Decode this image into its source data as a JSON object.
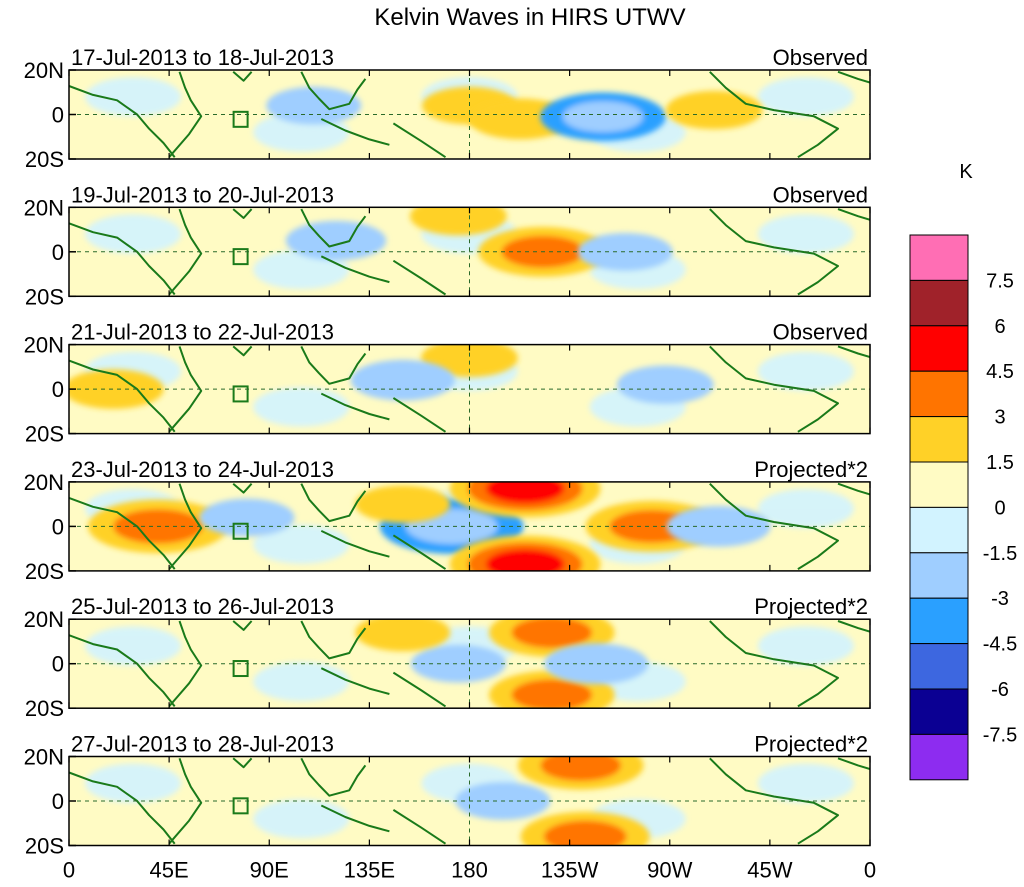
{
  "chart_data": {
    "type": "heatmap",
    "title": "Kelvin Waves in HIRS UTWV",
    "units": "K",
    "x_ticks": [
      "0",
      "45E",
      "90E",
      "135E",
      "180",
      "135W",
      "90W",
      "45W",
      "0"
    ],
    "x_range_deg_east": [
      0,
      360
    ],
    "y_ticks": [
      "20N",
      "0",
      "20S"
    ],
    "y_range_deg": [
      -20,
      20
    ],
    "colorbar": {
      "levels": [
        "7.5",
        "6",
        "4.5",
        "3",
        "1.5",
        "0",
        "-1.5",
        "-3",
        "-4.5",
        "-6",
        "-7.5"
      ],
      "colors": [
        "#ff6eb4",
        "#a0222a",
        "#ff0000",
        "#ff7400",
        "#ffd127",
        "#fffbc4",
        "#d2f3ff",
        "#9fceff",
        "#2aa0ff",
        "#3d67e0",
        "#0b0093",
        "#8d2cf0"
      ]
    },
    "panels": [
      {
        "date_range": "17-Jul-2013 to 18-Jul-2013",
        "label": "Observed",
        "features": [
          {
            "lon": 180,
            "lat": 4,
            "value": 1.5
          },
          {
            "lon": 203,
            "lat": -2,
            "value": 2.0
          },
          {
            "lon": 240,
            "lat": -1,
            "value": -3.2
          },
          {
            "lon": 290,
            "lat": 2,
            "value": 1.6
          },
          {
            "lon": 110,
            "lat": 4,
            "value": -1.5
          },
          {
            "lon": 150,
            "lat": -10,
            "value": 1.2
          },
          {
            "lon": 40,
            "lat": -1,
            "value": 0.8
          }
        ]
      },
      {
        "date_range": "19-Jul-2013 to 20-Jul-2013",
        "label": "Observed",
        "features": [
          {
            "lon": 213,
            "lat": 0,
            "value": 3.4
          },
          {
            "lon": 175,
            "lat": 16,
            "value": 1.6
          },
          {
            "lon": 120,
            "lat": 5,
            "value": -1.8
          },
          {
            "lon": 250,
            "lat": 0,
            "value": -1.5
          },
          {
            "lon": 40,
            "lat": 1,
            "value": 1.2
          },
          {
            "lon": 345,
            "lat": 0,
            "value": 1.2
          }
        ]
      },
      {
        "date_range": "21-Jul-2013 to 22-Jul-2013",
        "label": "Observed",
        "features": [
          {
            "lon": 20,
            "lat": 0,
            "value": 1.8
          },
          {
            "lon": 180,
            "lat": 14,
            "value": 1.6
          },
          {
            "lon": 220,
            "lat": 0,
            "value": 1.4
          },
          {
            "lon": 150,
            "lat": 4,
            "value": -2.0
          },
          {
            "lon": 268,
            "lat": 2,
            "value": -1.6
          },
          {
            "lon": 100,
            "lat": 0,
            "value": 1.2
          }
        ]
      },
      {
        "date_range": "23-Jul-2013 to 24-Jul-2013",
        "label": "Projected*2",
        "features": [
          {
            "lon": 40,
            "lat": 0,
            "value": 4.0
          },
          {
            "lon": 172,
            "lat": 0,
            "value": -4.2
          },
          {
            "lon": 205,
            "lat": 17,
            "value": 4.6
          },
          {
            "lon": 205,
            "lat": -17,
            "value": 4.6
          },
          {
            "lon": 262,
            "lat": 0,
            "value": 3.6
          },
          {
            "lon": 150,
            "lat": 10,
            "value": 1.5
          },
          {
            "lon": 292,
            "lat": 0,
            "value": -2.0
          },
          {
            "lon": 80,
            "lat": 4,
            "value": -1.5
          }
        ]
      },
      {
        "date_range": "25-Jul-2013 to 26-Jul-2013",
        "label": "Projected*2",
        "features": [
          {
            "lon": 217,
            "lat": 14,
            "value": 3.2
          },
          {
            "lon": 217,
            "lat": -14,
            "value": 3.2
          },
          {
            "lon": 175,
            "lat": 0,
            "value": -1.5
          },
          {
            "lon": 237,
            "lat": 0,
            "value": -2.0
          },
          {
            "lon": 150,
            "lat": 14,
            "value": 1.5
          },
          {
            "lon": 155,
            "lat": -14,
            "value": 1.4
          },
          {
            "lon": 42,
            "lat": 0,
            "value": 1.2
          }
        ]
      },
      {
        "date_range": "27-Jul-2013 to 28-Jul-2013",
        "label": "Projected*2",
        "features": [
          {
            "lon": 230,
            "lat": 16,
            "value": 3.2
          },
          {
            "lon": 232,
            "lat": -16,
            "value": 3.4
          },
          {
            "lon": 148,
            "lat": 0,
            "value": 1.3
          },
          {
            "lon": 195,
            "lat": 0,
            "value": -1.5
          },
          {
            "lon": 290,
            "lat": 0,
            "value": -1.3
          }
        ]
      }
    ]
  }
}
